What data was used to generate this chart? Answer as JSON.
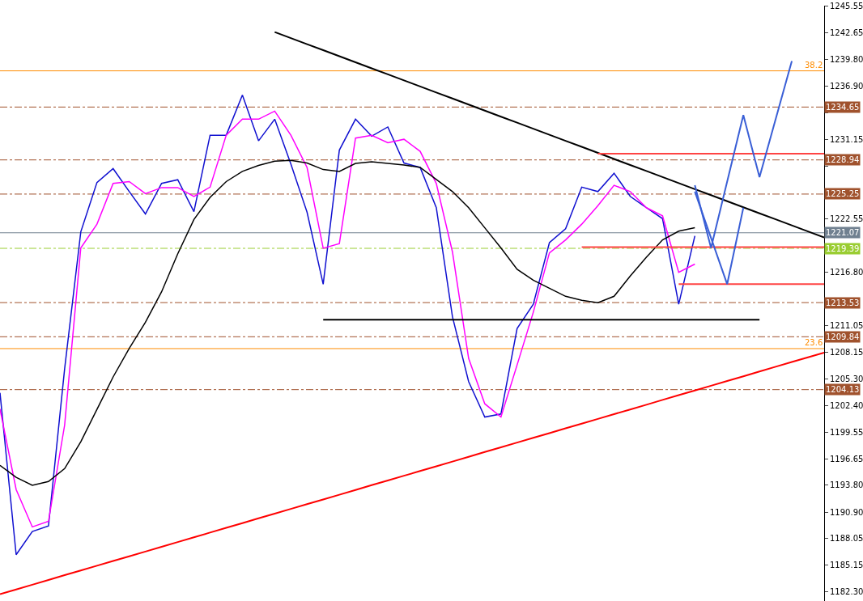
{
  "chart_data": {
    "type": "line",
    "ylim": [
      1181.3,
      1245.6
    ],
    "categories": [
      null,
      null,
      null,
      null,
      null,
      null,
      null,
      null,
      null,
      null,
      null,
      null,
      null,
      null,
      null,
      null,
      null,
      null,
      null,
      null,
      null,
      null,
      null,
      null,
      null,
      null,
      null,
      null,
      null,
      null,
      null,
      null,
      null,
      null,
      null,
      null,
      null,
      null,
      null,
      null,
      null,
      null,
      null,
      null,
      null,
      null,
      null,
      null,
      null,
      null,
      null,
      null
    ],
    "annotations": [
      {
        "text": "38.2",
        "y": 1238.56
      },
      {
        "text": "23.6",
        "y": 1208.56
      }
    ],
    "tick_labels": "y",
    "yticks": [
      {
        "value": 1182.3,
        "label": "1182.30"
      },
      {
        "value": 1185.15,
        "label": "1185.15"
      },
      {
        "value": 1188.05,
        "label": "1188.05"
      },
      {
        "value": 1190.9,
        "label": "1190.90"
      },
      {
        "value": 1193.8,
        "label": "1193.80"
      },
      {
        "value": 1196.65,
        "label": "1196.65"
      },
      {
        "value": 1199.55,
        "label": "1199.55"
      },
      {
        "value": 1202.4,
        "label": "1202.40"
      },
      {
        "value": 1205.3,
        "label": "1205.30"
      },
      {
        "value": 1208.15,
        "label": "1208.15"
      },
      {
        "value": 1211.05,
        "label": "1211.05"
      },
      {
        "value": 1216.8,
        "label": "1216.80"
      },
      {
        "value": 1222.55,
        "label": "1222.55"
      },
      {
        "value": 1228.3,
        "label": null
      },
      {
        "value": 1231.15,
        "label": "1231.15"
      },
      {
        "value": 1234.05,
        "label": null
      },
      {
        "value": 1236.9,
        "label": "1236.90"
      },
      {
        "value": 1239.8,
        "label": "1239.80"
      },
      {
        "value": 1242.65,
        "label": "1242.65"
      },
      {
        "value": 1245.55,
        "label": "1245.55"
      }
    ],
    "series": [
      {
        "color": "#1010d0",
        "values": [
          1203.78,
          1186.3,
          1188.8,
          1189.4,
          1206.39,
          1221.17,
          1226.5,
          1228.0,
          1225.52,
          1223.1,
          1226.4,
          1226.8,
          1223.35,
          1231.61,
          1231.61,
          1235.95,
          1231.0,
          1233.34,
          1228.5,
          1223.3,
          1215.52,
          1230.0,
          1233.34,
          1231.5,
          1232.5,
          1228.6,
          1228.13,
          1223.78,
          1212.0,
          1205.0,
          1201.17,
          1201.5,
          1210.74,
          1213.35,
          1220.0,
          1221.5,
          1226.0,
          1225.52,
          1227.5,
          1225.0,
          1223.78,
          1222.6,
          1213.35,
          1220.74,
          null,
          null,
          null,
          null,
          null,
          null,
          null,
          null
        ]
      },
      {
        "color": "#ff00ff",
        "values": [
          1202.04,
          1193.34,
          1189.3,
          1189.9,
          1200.3,
          1219.43,
          1222.0,
          1226.4,
          1226.6,
          1225.3,
          1225.95,
          1225.95,
          1225.0,
          1226.0,
          1231.61,
          1233.34,
          1233.34,
          1234.21,
          1231.61,
          1228.13,
          1219.4,
          1219.9,
          1231.3,
          1231.6,
          1230.8,
          1231.17,
          1229.87,
          1226.39,
          1219.0,
          1207.5,
          1202.6,
          1201.17,
          1206.8,
          1212.48,
          1218.9,
          1220.3,
          1222.0,
          1224.0,
          1226.2,
          1225.52,
          1223.78,
          1222.91,
          1216.8,
          1217.69,
          null,
          null,
          null,
          null,
          null,
          null,
          null,
          null
        ]
      },
      {
        "color": "#000000",
        "values": [
          1195.95,
          1194.65,
          1193.8,
          1194.21,
          1195.6,
          1198.5,
          1202.0,
          1205.5,
          1208.6,
          1211.4,
          1214.7,
          1218.8,
          1222.5,
          1224.9,
          1226.6,
          1227.7,
          1228.35,
          1228.8,
          1228.9,
          1228.6,
          1227.9,
          1227.69,
          1228.56,
          1228.74,
          1228.56,
          1228.39,
          1228.13,
          1226.82,
          1225.52,
          1223.78,
          1221.61,
          1219.43,
          1217.13,
          1215.95,
          1215.08,
          1214.21,
          1213.78,
          1213.52,
          1214.21,
          1216.39,
          1218.43,
          1220.3,
          1221.25,
          1221.61,
          null,
          null,
          null,
          null,
          null,
          null,
          null,
          null
        ]
      },
      {
        "color": "#000000",
        "values": [
          null,
          null,
          null,
          null,
          null,
          null,
          null,
          null,
          null,
          null,
          null,
          null,
          null,
          null,
          null,
          null,
          null,
          1242.75,
          1242.09,
          1241.44,
          1240.79,
          1240.14,
          1239.48,
          1238.83,
          1238.18,
          1237.53,
          1236.87,
          1236.22,
          1235.57,
          1234.92,
          1234.26,
          1233.61,
          1232.96,
          1232.31,
          1231.65,
          1231.0,
          1230.35,
          1229.7,
          1229.04,
          1228.39,
          1227.74,
          1227.09,
          1226.43,
          1225.78,
          1225.13,
          1224.48,
          1223.82,
          1223.17,
          1222.52,
          1221.87,
          1221.21,
          1220.56
        ]
      },
      {
        "color": "#ff0000",
        "values": [
          1182.04,
          1182.55,
          1183.06,
          1183.57,
          1184.09,
          1184.6,
          1185.11,
          1185.62,
          1186.13,
          1186.64,
          1187.16,
          1187.67,
          1188.18,
          1188.69,
          1189.2,
          1189.71,
          1190.23,
          1190.74,
          1191.25,
          1191.76,
          1192.27,
          1192.78,
          1193.29,
          1193.81,
          1194.32,
          1194.83,
          1195.34,
          1195.85,
          1196.36,
          1196.88,
          1197.39,
          1197.9,
          1198.41,
          1198.92,
          1199.43,
          1199.95,
          1200.46,
          1200.97,
          1201.48,
          1201.99,
          1202.5,
          1203.02,
          1203.53,
          1204.04,
          1204.55,
          1205.06,
          1205.57,
          1206.09,
          1206.6,
          1207.11,
          1207.62,
          1208.13
        ]
      },
      {
        "color": "#000000",
        "values": [
          null,
          null,
          null,
          null,
          null,
          null,
          null,
          null,
          null,
          null,
          null,
          null,
          null,
          null,
          null,
          null,
          null,
          null,
          null,
          null,
          1211.69,
          1211.69,
          1211.69,
          1211.69,
          1211.69,
          1211.69,
          1211.69,
          1211.69,
          1211.69,
          1211.69,
          1211.69,
          1211.69,
          1211.69,
          1211.69,
          1211.69,
          1211.69,
          1211.69,
          1211.69,
          1211.69,
          1211.69,
          1211.69,
          1211.69,
          1211.69,
          1211.69,
          1211.69,
          1211.69,
          1211.69,
          1211.69,
          null,
          null,
          null,
          null
        ]
      },
      {
        "color": "#ff4444",
        "values": [
          null,
          null,
          null,
          null,
          null,
          null,
          null,
          null,
          null,
          null,
          null,
          null,
          null,
          null,
          null,
          null,
          null,
          null,
          null,
          null,
          null,
          null,
          null,
          null,
          null,
          null,
          null,
          null,
          null,
          null,
          null,
          null,
          null,
          null,
          null,
          null,
          null,
          1229.61,
          1229.61,
          1229.61,
          1229.61,
          1229.61,
          1229.61,
          1229.61,
          1229.61,
          1229.61,
          1229.61,
          1229.61,
          1229.61,
          1229.61,
          1229.61,
          1229.61
        ]
      },
      {
        "color": "#ff4444",
        "values": [
          null,
          null,
          null,
          null,
          null,
          null,
          null,
          null,
          null,
          null,
          null,
          null,
          null,
          null,
          null,
          null,
          null,
          null,
          null,
          null,
          null,
          null,
          null,
          null,
          null,
          null,
          null,
          null,
          null,
          null,
          null,
          null,
          null,
          null,
          null,
          null,
          1219.52,
          1219.52,
          1219.52,
          1219.52,
          1219.52,
          1219.52,
          1219.52,
          1219.52,
          1219.52,
          1219.52,
          1219.52,
          1219.52,
          1219.52,
          1219.52,
          1219.52,
          1219.52
        ]
      },
      {
        "color": "#ff4444",
        "values": [
          null,
          null,
          null,
          null,
          null,
          null,
          null,
          null,
          null,
          null,
          null,
          null,
          null,
          null,
          null,
          null,
          null,
          null,
          null,
          null,
          null,
          null,
          null,
          null,
          null,
          null,
          null,
          null,
          null,
          null,
          null,
          null,
          null,
          null,
          null,
          null,
          null,
          null,
          null,
          null,
          null,
          null,
          1215.52,
          1215.52,
          1215.52,
          1215.52,
          1215.52,
          1215.52,
          1215.52,
          1215.52,
          1215.52,
          1215.52
        ]
      },
      {
        "color": "#3a5fd6",
        "values": [
          null,
          null,
          null,
          null,
          null,
          null,
          null,
          null,
          null,
          null,
          null,
          null,
          null,
          null,
          null,
          null,
          null,
          null,
          null,
          null,
          null,
          null,
          null,
          null,
          null,
          null,
          null,
          null,
          null,
          null,
          null,
          null,
          null,
          null,
          null,
          null,
          null,
          null,
          null,
          null,
          null,
          null,
          null,
          1226.21,
          1219.43,
          null,
          1233.78,
          1227.08,
          null,
          1239.61,
          null,
          null
        ]
      },
      {
        "color": "#3a5fd6",
        "values": [
          null,
          null,
          null,
          null,
          null,
          null,
          null,
          null,
          null,
          null,
          null,
          null,
          null,
          null,
          null,
          null,
          null,
          null,
          null,
          null,
          null,
          null,
          null,
          null,
          null,
          null,
          null,
          null,
          null,
          null,
          null,
          null,
          null,
          null,
          null,
          null,
          null,
          null,
          null,
          null,
          null,
          null,
          null,
          1225.52,
          null,
          1215.52,
          1223.78,
          null,
          null,
          null,
          null,
          null
        ]
      }
    ],
    "ref_lines": [
      {
        "axis": "y",
        "value": 1238.56,
        "color": "#ff8c00",
        "line_style": "solid"
      },
      {
        "axis": "y",
        "value": 1208.56,
        "color": "#ff8c00",
        "line_style": "solid"
      },
      {
        "axis": "y",
        "value": 1234.65,
        "label": "1234.65",
        "color": "#a0522d",
        "line_style": "dashdot"
      },
      {
        "axis": "y",
        "value": 1228.94,
        "label": "1228.94",
        "color": "#a0522d",
        "line_style": "dashdot"
      },
      {
        "axis": "y",
        "value": 1225.25,
        "label": "1225.25",
        "color": "#a0522d",
        "line_style": "dashdot"
      },
      {
        "axis": "y",
        "value": 1221.07,
        "label": "1221.07",
        "color": "#708090",
        "line_style": "solid"
      },
      {
        "axis": "y",
        "value": 1219.39,
        "label": "1219.39",
        "color": "#9acd32",
        "line_style": "dashdot"
      },
      {
        "axis": "y",
        "value": 1213.53,
        "label": "1213.53",
        "color": "#a0522d",
        "line_style": "dashdot"
      },
      {
        "axis": "y",
        "value": 1209.84,
        "label": "1209.84",
        "color": "#a0522d",
        "line_style": "dashdot"
      },
      {
        "axis": "y",
        "value": 1204.13,
        "label": "1204.13",
        "color": "#a0522d",
        "line_style": "dashdot"
      }
    ]
  }
}
